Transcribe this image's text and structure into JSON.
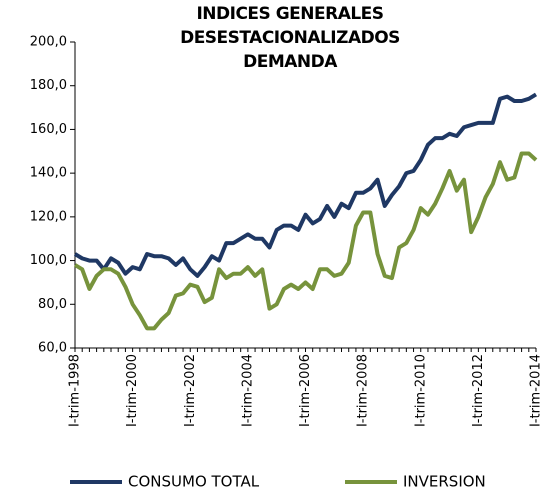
{
  "chart_data": {
    "type": "line",
    "title": [
      "INDICES GENERALES",
      "DESESTACIONALIZADOS",
      "DEMANDA"
    ],
    "categories": [
      "I-trim-1998",
      null,
      null,
      null,
      null,
      null,
      null,
      null,
      "I-trim-2000",
      null,
      null,
      null,
      null,
      null,
      null,
      null,
      "I-trim-2002",
      null,
      null,
      null,
      null,
      null,
      null,
      null,
      "I-trim-2004",
      null,
      null,
      null,
      null,
      null,
      null,
      null,
      "I-trim-2006",
      null,
      null,
      null,
      null,
      null,
      null,
      null,
      "I-trim-2008",
      null,
      null,
      null,
      null,
      null,
      null,
      null,
      "I-trim-2010",
      null,
      null,
      null,
      null,
      null,
      null,
      null,
      "I-trim-2012",
      null,
      null,
      null,
      null,
      null,
      null,
      null,
      "I-trim-2014"
    ],
    "series": [
      {
        "name": "CONSUMO TOTAL",
        "color": "#1f3864",
        "values": [
          103,
          101,
          100,
          100,
          96,
          101,
          99,
          94,
          97,
          96,
          103,
          102,
          102,
          101,
          98,
          101,
          96,
          93,
          97,
          102,
          100,
          108,
          108,
          110,
          112,
          110,
          110,
          106,
          114,
          116,
          116,
          114,
          121,
          117,
          119,
          125,
          120,
          126,
          124,
          131,
          131,
          133,
          137,
          125,
          130,
          134,
          140,
          141,
          146,
          153,
          156,
          156,
          158,
          157,
          161,
          162,
          163,
          163,
          163,
          174,
          175,
          173,
          173,
          174,
          176
        ]
      },
      {
        "name": "INVERSION",
        "color": "#77933c",
        "values": [
          98,
          96,
          87,
          93,
          96,
          96,
          94,
          88,
          80,
          75,
          69,
          69,
          73,
          76,
          84,
          85,
          89,
          88,
          81,
          83,
          96,
          92,
          94,
          94,
          97,
          93,
          96,
          78,
          80,
          87,
          89,
          87,
          90,
          87,
          96,
          96,
          93,
          94,
          99,
          116,
          122,
          122,
          103,
          93,
          92,
          106,
          108,
          114,
          124,
          121,
          126,
          133,
          141,
          132,
          137,
          113,
          120,
          129,
          135,
          145,
          137,
          138,
          149,
          149,
          146
        ]
      }
    ],
    "ylim": [
      60,
      200
    ],
    "yticks": [
      {
        "value": 60,
        "label": "60,0"
      },
      {
        "value": 80,
        "label": "80,0"
      },
      {
        "value": 100,
        "label": "100,0"
      },
      {
        "value": 120,
        "label": "120,0"
      },
      {
        "value": 140,
        "label": "140,0"
      },
      {
        "value": 160,
        "label": "160,0"
      },
      {
        "value": 180,
        "label": "180,0"
      },
      {
        "value": 200,
        "label": "200,0"
      }
    ]
  }
}
